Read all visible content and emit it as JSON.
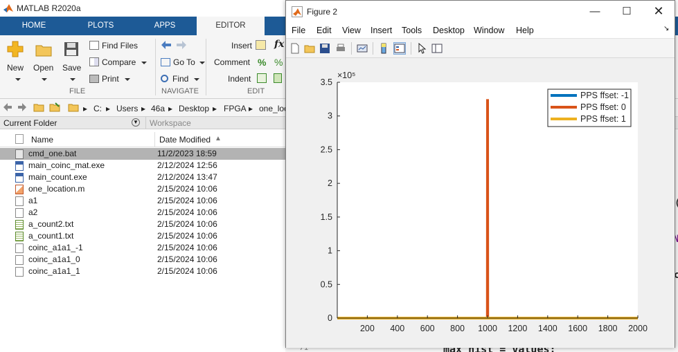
{
  "main_window": {
    "title": "MATLAB R2020a",
    "tabs": [
      {
        "label": "HOME"
      },
      {
        "label": "PLOTS"
      },
      {
        "label": "APPS"
      },
      {
        "label": "EDITOR"
      }
    ],
    "ribbon": {
      "file": {
        "new": "New",
        "open": "Open",
        "save": "Save",
        "find_files": "Find Files",
        "compare": "Compare",
        "print": "Print",
        "group_label": "FILE"
      },
      "navigate": {
        "goto": "Go To",
        "find": "Find",
        "group_label": "NAVIGATE"
      },
      "edit": {
        "insert": "Insert",
        "comment": "Comment",
        "indent": "Indent",
        "group_label": "EDIT"
      }
    },
    "address_bar": {
      "segments": [
        "C:",
        "Users",
        "46a",
        "Desktop",
        "FPGA",
        "one_loc"
      ]
    },
    "panels": {
      "current_folder": "Current Folder",
      "workspace": "Workspace"
    },
    "file_list": {
      "col_name": "Name",
      "col_date": "Date Modified",
      "rows": [
        {
          "name": "cmd_one.bat",
          "date": "11/2/2023 18:59",
          "type": "bat"
        },
        {
          "name": "main_coinc_mat.exe",
          "date": "2/12/2024 12:56",
          "type": "exe"
        },
        {
          "name": "main_count.exe",
          "date": "2/12/2024 13:47",
          "type": "exe"
        },
        {
          "name": "one_location.m",
          "date": "2/15/2024 10:06",
          "type": "mfile"
        },
        {
          "name": "a1",
          "date": "2/15/2024 10:06",
          "type": "file"
        },
        {
          "name": "a2",
          "date": "2/15/2024 10:06",
          "type": "file"
        },
        {
          "name": "a_count2.txt",
          "date": "2/15/2024 10:06",
          "type": "txt"
        },
        {
          "name": "a_count1.txt",
          "date": "2/15/2024 10:06",
          "type": "txt"
        },
        {
          "name": "coinc_a1a1_-1",
          "date": "2/15/2024 10:06",
          "type": "file"
        },
        {
          "name": "coinc_a1a1_0",
          "date": "2/15/2024 10:06",
          "type": "file"
        },
        {
          "name": "coinc_a1a1_1",
          "date": "2/15/2024 10:06",
          "type": "file"
        }
      ]
    },
    "background_code": {
      "line_number": "71",
      "line_text": "max_hist = values;"
    }
  },
  "figure_window": {
    "title": "Figure 2",
    "menus": [
      "File",
      "Edit",
      "View",
      "Insert",
      "Tools",
      "Desktop",
      "Window",
      "Help"
    ]
  },
  "chart_data": {
    "type": "line",
    "title": "",
    "xlabel": "",
    "ylabel": "",
    "exponent_label": "×10⁵",
    "xlim": [
      0,
      2000
    ],
    "ylim": [
      0,
      3.5
    ],
    "xticks": [
      200,
      400,
      600,
      800,
      1000,
      1200,
      1400,
      1600,
      1800,
      2000
    ],
    "yticks": [
      0,
      0.5,
      1,
      1.5,
      2,
      2.5,
      3,
      3.5
    ],
    "ytick_labels": [
      "0",
      "0.5",
      "1",
      "1.5",
      "2",
      "2.5",
      "3",
      "3.5"
    ],
    "grid": false,
    "legend_position": "top-right",
    "series": [
      {
        "name": "PPS ffset: -1",
        "color": "#0072BD",
        "x": [
          0,
          2000
        ],
        "y": [
          0,
          0
        ]
      },
      {
        "name": "PPS ffset: 0",
        "color": "#D95319",
        "x": [
          0,
          999,
          1000,
          1001,
          2000
        ],
        "y": [
          0,
          0,
          3.25,
          0,
          0
        ]
      },
      {
        "name": "PPS ffset: 1",
        "color": "#EDB120",
        "x": [
          0,
          2000
        ],
        "y": [
          0,
          0
        ]
      }
    ]
  }
}
